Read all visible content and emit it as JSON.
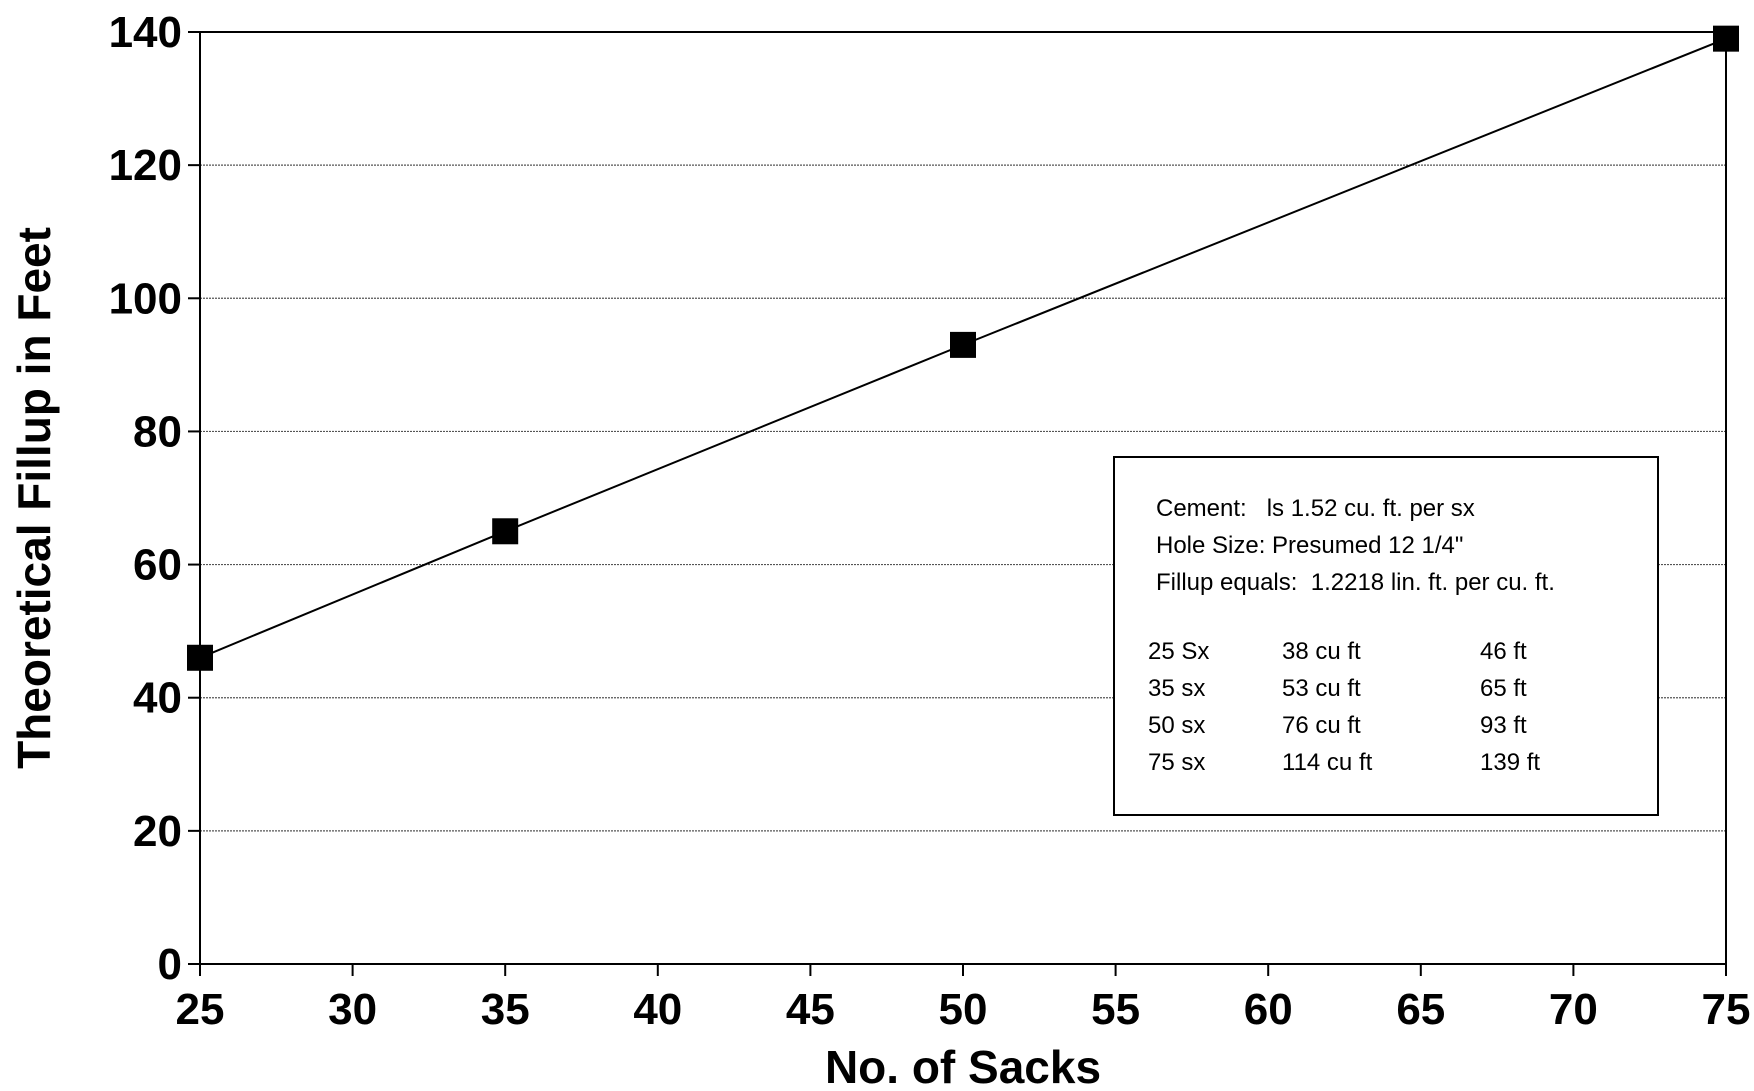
{
  "chart_data": {
    "type": "line",
    "title": "",
    "xlabel": "No. of Sacks",
    "ylabel": "Theoretical Fillup in Feet",
    "xlim": [
      25,
      75
    ],
    "ylim": [
      0,
      140
    ],
    "xticks": [
      25,
      30,
      35,
      40,
      45,
      50,
      55,
      60,
      65,
      70,
      75
    ],
    "yticks": [
      0,
      20,
      40,
      60,
      80,
      100,
      120,
      140
    ],
    "grid": "horizontal",
    "series": [
      {
        "x": [
          25,
          35,
          50,
          75
        ],
        "y": [
          46,
          65,
          93,
          139
        ],
        "marker": "square",
        "color": "#000000"
      }
    ],
    "annotation": {
      "placement": "lower-right",
      "lines": [
        "Cement:   ls 1.52 cu. ft. per sx",
        "Hole Size: Presumed 12 1/4\"",
        "Fillup equals:  1.2218 lin. ft. per cu. ft."
      ],
      "table": [
        [
          "25 Sx",
          "38 cu ft",
          "46 ft"
        ],
        [
          "35 sx",
          "53 cu ft",
          "65 ft"
        ],
        [
          "50 sx",
          "76 cu ft",
          "93 ft"
        ],
        [
          "75 sx",
          "114 cu ft",
          "139 ft"
        ]
      ]
    }
  }
}
